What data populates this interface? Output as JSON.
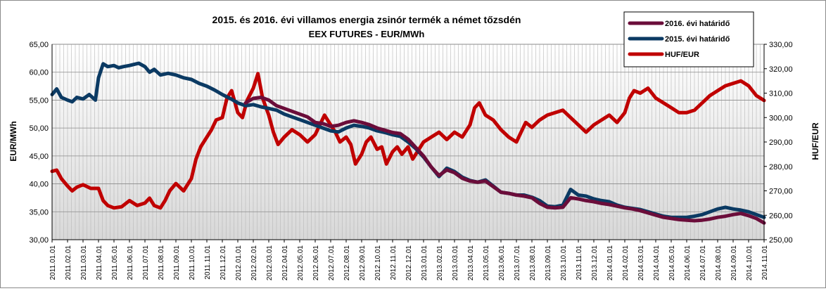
{
  "chart_data": {
    "type": "line",
    "title": "2015. és 2016. évi villamos energia zsinór termék a német tőzsdén",
    "subtitle": "EEX FUTURES - EUR/MWh",
    "ylabel": "EUR/MWh",
    "y2label": "HUF/EUR",
    "ylim": [
      30,
      65
    ],
    "y2lim": [
      250,
      330
    ],
    "yticks": [
      "30,00",
      "35,00",
      "40,00",
      "45,00",
      "50,00",
      "55,00",
      "60,00",
      "65,00"
    ],
    "y2ticks": [
      "250,00",
      "260,00",
      "270,00",
      "280,00",
      "290,00",
      "300,00",
      "310,00",
      "320,00",
      "330,00"
    ],
    "xticks": [
      "2011.01.01",
      "2011.02.01",
      "2011.03.01",
      "2011.04.01",
      "2011.05.01",
      "2011.06.01",
      "2011.07.01",
      "2011.08.01",
      "2011.09.01",
      "2011.10.01",
      "2011.11.01",
      "2011.12.01",
      "2012.01.01",
      "2012.02.01",
      "2012.03.01",
      "2012.04.01",
      "2012.05.01",
      "2012.06.01",
      "2012.07.01",
      "2012.08.01",
      "2012.09.01",
      "2012.10.01",
      "2012.11.01",
      "2012.12.01",
      "2013.01.01",
      "2013.02.01",
      "2013.03.01",
      "2013.04.01",
      "2013.05.01",
      "2013.06.01",
      "2013.07.01",
      "2013.08.01",
      "2013.09.01",
      "2013.10.01",
      "2013.11.01",
      "2013.12.01",
      "2014.01.01",
      "2014.02.01",
      "2014.03.01",
      "2014.04.01",
      "2014.05.01",
      "2014.06.01",
      "2014.07.01",
      "2014.08.01",
      "2014.09.01",
      "2014.10.01",
      "2014.11.01"
    ],
    "grid": true,
    "legend_position": "top-right",
    "series": [
      {
        "name": "2016. évi határidő",
        "axis": "left",
        "color": "#6b0d3a",
        "start_index": 12.5,
        "points": [
          [
            12.5,
            54.5
          ],
          [
            13,
            55.3
          ],
          [
            13.5,
            55.5
          ],
          [
            14,
            55
          ],
          [
            14.5,
            54
          ],
          [
            15,
            53.5
          ],
          [
            15.5,
            53
          ],
          [
            16,
            52.5
          ],
          [
            16.5,
            52
          ],
          [
            17,
            51
          ],
          [
            17.5,
            50.8
          ],
          [
            18,
            50.3
          ],
          [
            18.5,
            50.5
          ],
          [
            19,
            51
          ],
          [
            19.5,
            51.3
          ],
          [
            20,
            51
          ],
          [
            20.5,
            50.6
          ],
          [
            21,
            50
          ],
          [
            21.5,
            49.6
          ],
          [
            22,
            49.2
          ],
          [
            22.5,
            49
          ],
          [
            23,
            48
          ],
          [
            23.5,
            46.5
          ],
          [
            24,
            45
          ],
          [
            24.5,
            43
          ],
          [
            25,
            41.5
          ],
          [
            25.5,
            42.5
          ],
          [
            26,
            42
          ],
          [
            26.5,
            41
          ],
          [
            27,
            40.5
          ],
          [
            27.5,
            40.3
          ],
          [
            28,
            40.5
          ],
          [
            28.5,
            39.5
          ],
          [
            29,
            38.5
          ],
          [
            29.5,
            38.3
          ],
          [
            30,
            38
          ],
          [
            30.5,
            37.8
          ],
          [
            31,
            37.5
          ],
          [
            31.5,
            36.5
          ],
          [
            32,
            35.8
          ],
          [
            32.5,
            35.7
          ],
          [
            33,
            35.8
          ],
          [
            33.5,
            37.5
          ],
          [
            34,
            37.3
          ],
          [
            34.5,
            37
          ],
          [
            35,
            36.8
          ],
          [
            35.5,
            36.5
          ],
          [
            36,
            36.3
          ],
          [
            36.5,
            36
          ],
          [
            37,
            35.7
          ],
          [
            37.5,
            35.5
          ],
          [
            38,
            35.2
          ],
          [
            38.5,
            34.8
          ],
          [
            39,
            34.4
          ],
          [
            39.5,
            34
          ],
          [
            40,
            33.8
          ],
          [
            40.5,
            33.6
          ],
          [
            41,
            33.5
          ],
          [
            41.5,
            33.4
          ],
          [
            42,
            33.5
          ],
          [
            42.5,
            33.7
          ],
          [
            43,
            34
          ],
          [
            43.5,
            34.2
          ],
          [
            44,
            34.5
          ],
          [
            44.5,
            34.7
          ],
          [
            45,
            34.3
          ],
          [
            45.5,
            33.8
          ],
          [
            46,
            33
          ]
        ]
      },
      {
        "name": "2015. évi határidő",
        "axis": "left",
        "color": "#0b3a63",
        "start_index": 0,
        "points": [
          [
            0,
            56
          ],
          [
            0.3,
            57
          ],
          [
            0.6,
            55.5
          ],
          [
            1,
            55
          ],
          [
            1.3,
            54.7
          ],
          [
            1.6,
            55.5
          ],
          [
            2,
            55.2
          ],
          [
            2.4,
            56
          ],
          [
            2.8,
            55
          ],
          [
            3,
            59
          ],
          [
            3.3,
            61.5
          ],
          [
            3.6,
            61
          ],
          [
            4,
            61.2
          ],
          [
            4.3,
            60.8
          ],
          [
            4.6,
            61
          ],
          [
            5,
            61.2
          ],
          [
            5.3,
            61.4
          ],
          [
            5.6,
            61.6
          ],
          [
            6,
            61
          ],
          [
            6.3,
            60
          ],
          [
            6.6,
            60.5
          ],
          [
            7,
            59.5
          ],
          [
            7.5,
            59.8
          ],
          [
            8,
            59.5
          ],
          [
            8.5,
            59
          ],
          [
            9,
            58.7
          ],
          [
            9.5,
            58
          ],
          [
            10,
            57.5
          ],
          [
            10.5,
            56.8
          ],
          [
            11,
            56
          ],
          [
            11.5,
            55.3
          ],
          [
            12,
            54.5
          ],
          [
            12.5,
            54
          ],
          [
            13,
            54.2
          ],
          [
            13.5,
            53.8
          ],
          [
            14,
            53.5
          ],
          [
            14.5,
            53.2
          ],
          [
            15,
            52.5
          ],
          [
            15.5,
            52
          ],
          [
            16,
            51.5
          ],
          [
            16.5,
            51
          ],
          [
            17,
            50.5
          ],
          [
            17.5,
            50
          ],
          [
            18,
            49.5
          ],
          [
            18.5,
            49.3
          ],
          [
            19,
            50
          ],
          [
            19.5,
            50.5
          ],
          [
            20,
            50.3
          ],
          [
            20.5,
            50
          ],
          [
            21,
            49.5
          ],
          [
            21.5,
            49.2
          ],
          [
            22,
            48.8
          ],
          [
            22.5,
            48.5
          ],
          [
            23,
            47.5
          ],
          [
            23.5,
            46.3
          ],
          [
            24,
            44.8
          ],
          [
            24.5,
            43
          ],
          [
            25,
            41.3
          ],
          [
            25.5,
            42.8
          ],
          [
            26,
            42.2
          ],
          [
            26.5,
            41.2
          ],
          [
            27,
            40.6
          ],
          [
            27.5,
            40.3
          ],
          [
            28,
            40.7
          ],
          [
            28.5,
            39.6
          ],
          [
            29,
            38.5
          ],
          [
            29.5,
            38.3
          ],
          [
            30,
            38
          ],
          [
            30.5,
            38
          ],
          [
            31,
            37.6
          ],
          [
            31.5,
            37
          ],
          [
            32,
            36
          ],
          [
            32.5,
            35.9
          ],
          [
            33,
            36.2
          ],
          [
            33.5,
            39
          ],
          [
            34,
            38
          ],
          [
            34.5,
            37.8
          ],
          [
            35,
            37.3
          ],
          [
            35.5,
            37
          ],
          [
            36,
            36.8
          ],
          [
            36.5,
            36.2
          ],
          [
            37,
            35.8
          ],
          [
            37.5,
            35.6
          ],
          [
            38,
            35.4
          ],
          [
            38.5,
            35
          ],
          [
            39,
            34.6
          ],
          [
            39.5,
            34.2
          ],
          [
            40,
            34
          ],
          [
            40.5,
            34
          ],
          [
            41,
            34
          ],
          [
            41.5,
            34.2
          ],
          [
            42,
            34.5
          ],
          [
            42.5,
            35
          ],
          [
            43,
            35.5
          ],
          [
            43.5,
            35.8
          ],
          [
            44,
            35.5
          ],
          [
            44.5,
            35.3
          ],
          [
            45,
            35
          ],
          [
            45.5,
            34.5
          ],
          [
            46,
            34
          ]
        ]
      },
      {
        "name": "HUF/EUR",
        "axis": "right",
        "color": "#c00000",
        "start_index": 0,
        "points": [
          [
            0,
            278
          ],
          [
            0.3,
            278.5
          ],
          [
            0.6,
            275
          ],
          [
            1,
            272
          ],
          [
            1.3,
            270
          ],
          [
            1.6,
            271.5
          ],
          [
            2,
            272.5
          ],
          [
            2.5,
            271
          ],
          [
            3,
            271
          ],
          [
            3.3,
            266
          ],
          [
            3.6,
            264
          ],
          [
            4,
            263
          ],
          [
            4.5,
            263.5
          ],
          [
            5,
            266
          ],
          [
            5.5,
            264
          ],
          [
            6,
            265
          ],
          [
            6.3,
            267
          ],
          [
            6.6,
            264
          ],
          [
            7,
            263
          ],
          [
            7.3,
            266
          ],
          [
            7.6,
            270
          ],
          [
            8,
            273
          ],
          [
            8.5,
            270
          ],
          [
            9,
            275
          ],
          [
            9.3,
            283
          ],
          [
            9.6,
            288
          ],
          [
            10,
            292
          ],
          [
            10.3,
            295
          ],
          [
            10.6,
            299
          ],
          [
            11,
            300
          ],
          [
            11.3,
            308
          ],
          [
            11.6,
            311
          ],
          [
            12,
            302
          ],
          [
            12.3,
            300
          ],
          [
            12.6,
            307
          ],
          [
            13,
            312
          ],
          [
            13.3,
            318
          ],
          [
            13.6,
            308
          ],
          [
            14,
            301
          ],
          [
            14.3,
            294
          ],
          [
            14.6,
            289
          ],
          [
            15,
            292
          ],
          [
            15.5,
            295
          ],
          [
            16,
            293
          ],
          [
            16.5,
            290
          ],
          [
            17,
            293
          ],
          [
            17.3,
            297
          ],
          [
            17.6,
            301
          ],
          [
            18,
            297
          ],
          [
            18.3,
            294
          ],
          [
            18.6,
            290
          ],
          [
            19,
            292
          ],
          [
            19.3,
            289
          ],
          [
            19.6,
            281
          ],
          [
            20,
            285
          ],
          [
            20.3,
            290
          ],
          [
            20.6,
            292
          ],
          [
            21,
            287
          ],
          [
            21.3,
            288
          ],
          [
            21.6,
            281
          ],
          [
            22,
            286
          ],
          [
            22.3,
            288
          ],
          [
            22.6,
            285
          ],
          [
            23,
            288
          ],
          [
            23.3,
            283
          ],
          [
            23.6,
            286
          ],
          [
            24,
            290
          ],
          [
            24.5,
            292
          ],
          [
            25,
            294
          ],
          [
            25.5,
            291
          ],
          [
            26,
            294
          ],
          [
            26.5,
            292
          ],
          [
            27,
            297
          ],
          [
            27.3,
            304
          ],
          [
            27.6,
            306
          ],
          [
            28,
            301
          ],
          [
            28.5,
            299
          ],
          [
            29,
            295
          ],
          [
            29.5,
            292
          ],
          [
            30,
            290
          ],
          [
            30.3,
            294
          ],
          [
            30.6,
            298
          ],
          [
            31,
            296
          ],
          [
            31.5,
            299
          ],
          [
            32,
            301
          ],
          [
            32.5,
            302
          ],
          [
            33,
            303
          ],
          [
            33.5,
            300
          ],
          [
            34,
            297
          ],
          [
            34.5,
            294
          ],
          [
            35,
            297
          ],
          [
            35.5,
            299
          ],
          [
            36,
            301
          ],
          [
            36.5,
            298
          ],
          [
            37,
            302
          ],
          [
            37.3,
            308
          ],
          [
            37.6,
            311
          ],
          [
            38,
            310
          ],
          [
            38.5,
            312
          ],
          [
            39,
            308
          ],
          [
            39.5,
            306
          ],
          [
            40,
            304
          ],
          [
            40.5,
            302
          ],
          [
            41,
            302
          ],
          [
            41.5,
            303
          ],
          [
            42,
            306
          ],
          [
            42.5,
            309
          ],
          [
            43,
            311
          ],
          [
            43.5,
            313
          ],
          [
            44,
            314
          ],
          [
            44.5,
            315
          ],
          [
            45,
            313
          ],
          [
            45.5,
            309
          ],
          [
            46,
            307
          ]
        ]
      }
    ]
  }
}
